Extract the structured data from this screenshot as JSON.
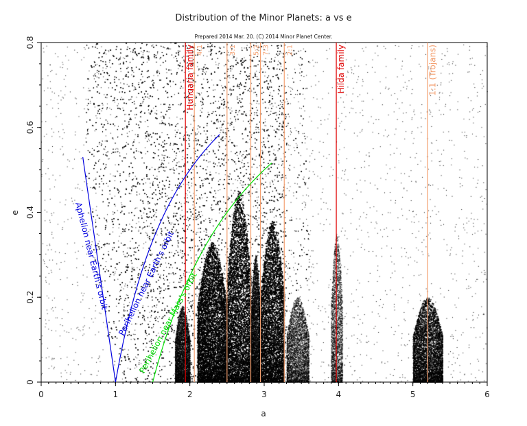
{
  "chart_data": {
    "type": "scatter",
    "title": "Distribution of the Minor Planets: a vs e",
    "subtitle": "Prepared 2014 Mar. 20.  (C) 2014 Minor Planet Center.",
    "xlabel": "a",
    "ylabel": "e",
    "xlim": [
      0,
      6
    ],
    "ylim": [
      0,
      0.8
    ],
    "xticks": [
      "0",
      "1",
      "2",
      "3",
      "4",
      "5",
      "6"
    ],
    "yticks": [
      "0",
      "0.2",
      "0.4",
      "0.6",
      "0.8"
    ],
    "grid": false,
    "point_color": "#000000",
    "populations": [
      {
        "a": [
          2.1,
          2.5
        ],
        "e_max": 0.33,
        "density": 1.0
      },
      {
        "a": [
          2.5,
          2.82
        ],
        "e_max": 0.45,
        "density": 1.0
      },
      {
        "a": [
          2.82,
          2.95
        ],
        "e_max": 0.3,
        "density": 0.6
      },
      {
        "a": [
          2.95,
          3.27
        ],
        "e_max": 0.38,
        "density": 0.9
      },
      {
        "a": [
          3.3,
          3.6
        ],
        "e_max": 0.2,
        "density": 0.15
      },
      {
        "a": [
          1.8,
          2.0
        ],
        "e_max": 0.18,
        "density": 0.3
      },
      {
        "a": [
          3.9,
          4.05
        ],
        "e_max": 0.35,
        "density": 0.2
      },
      {
        "a": [
          5.0,
          5.4
        ],
        "e_max": 0.2,
        "density": 0.35
      }
    ],
    "vertical_lines": [
      {
        "a": 1.94,
        "label": "Hungaria family",
        "color": "#e00000"
      },
      {
        "a": 2.06,
        "label": "4:1",
        "color": "#f4a070"
      },
      {
        "a": 2.5,
        "label": "3:1",
        "color": "#f4a070"
      },
      {
        "a": 2.82,
        "label": "5:2",
        "color": "#f4a070"
      },
      {
        "a": 2.95,
        "label": "7:3",
        "color": "#f4a070"
      },
      {
        "a": 3.27,
        "label": "2:1",
        "color": "#f4a070"
      },
      {
        "a": 3.97,
        "label": "Hilda family",
        "color": "#e00000"
      },
      {
        "a": 5.2,
        "label": "1:1 (Trojans)",
        "color": "#f4a070"
      }
    ],
    "curves": [
      {
        "label": "Aphelion near Earth's orbit",
        "color": "#0000e0",
        "points": [
          [
            1.0,
            0.0
          ],
          [
            0.56,
            0.53
          ]
        ]
      },
      {
        "label": "Perihelion near Earth's orbit",
        "color": "#0000e0",
        "perihelion": 1.0,
        "a_range": [
          1.0,
          2.4
        ]
      },
      {
        "label": "Perihelion near Mars's orbit",
        "color": "#00e000",
        "perihelion": 1.5,
        "a_range": [
          1.5,
          3.1
        ]
      }
    ]
  }
}
